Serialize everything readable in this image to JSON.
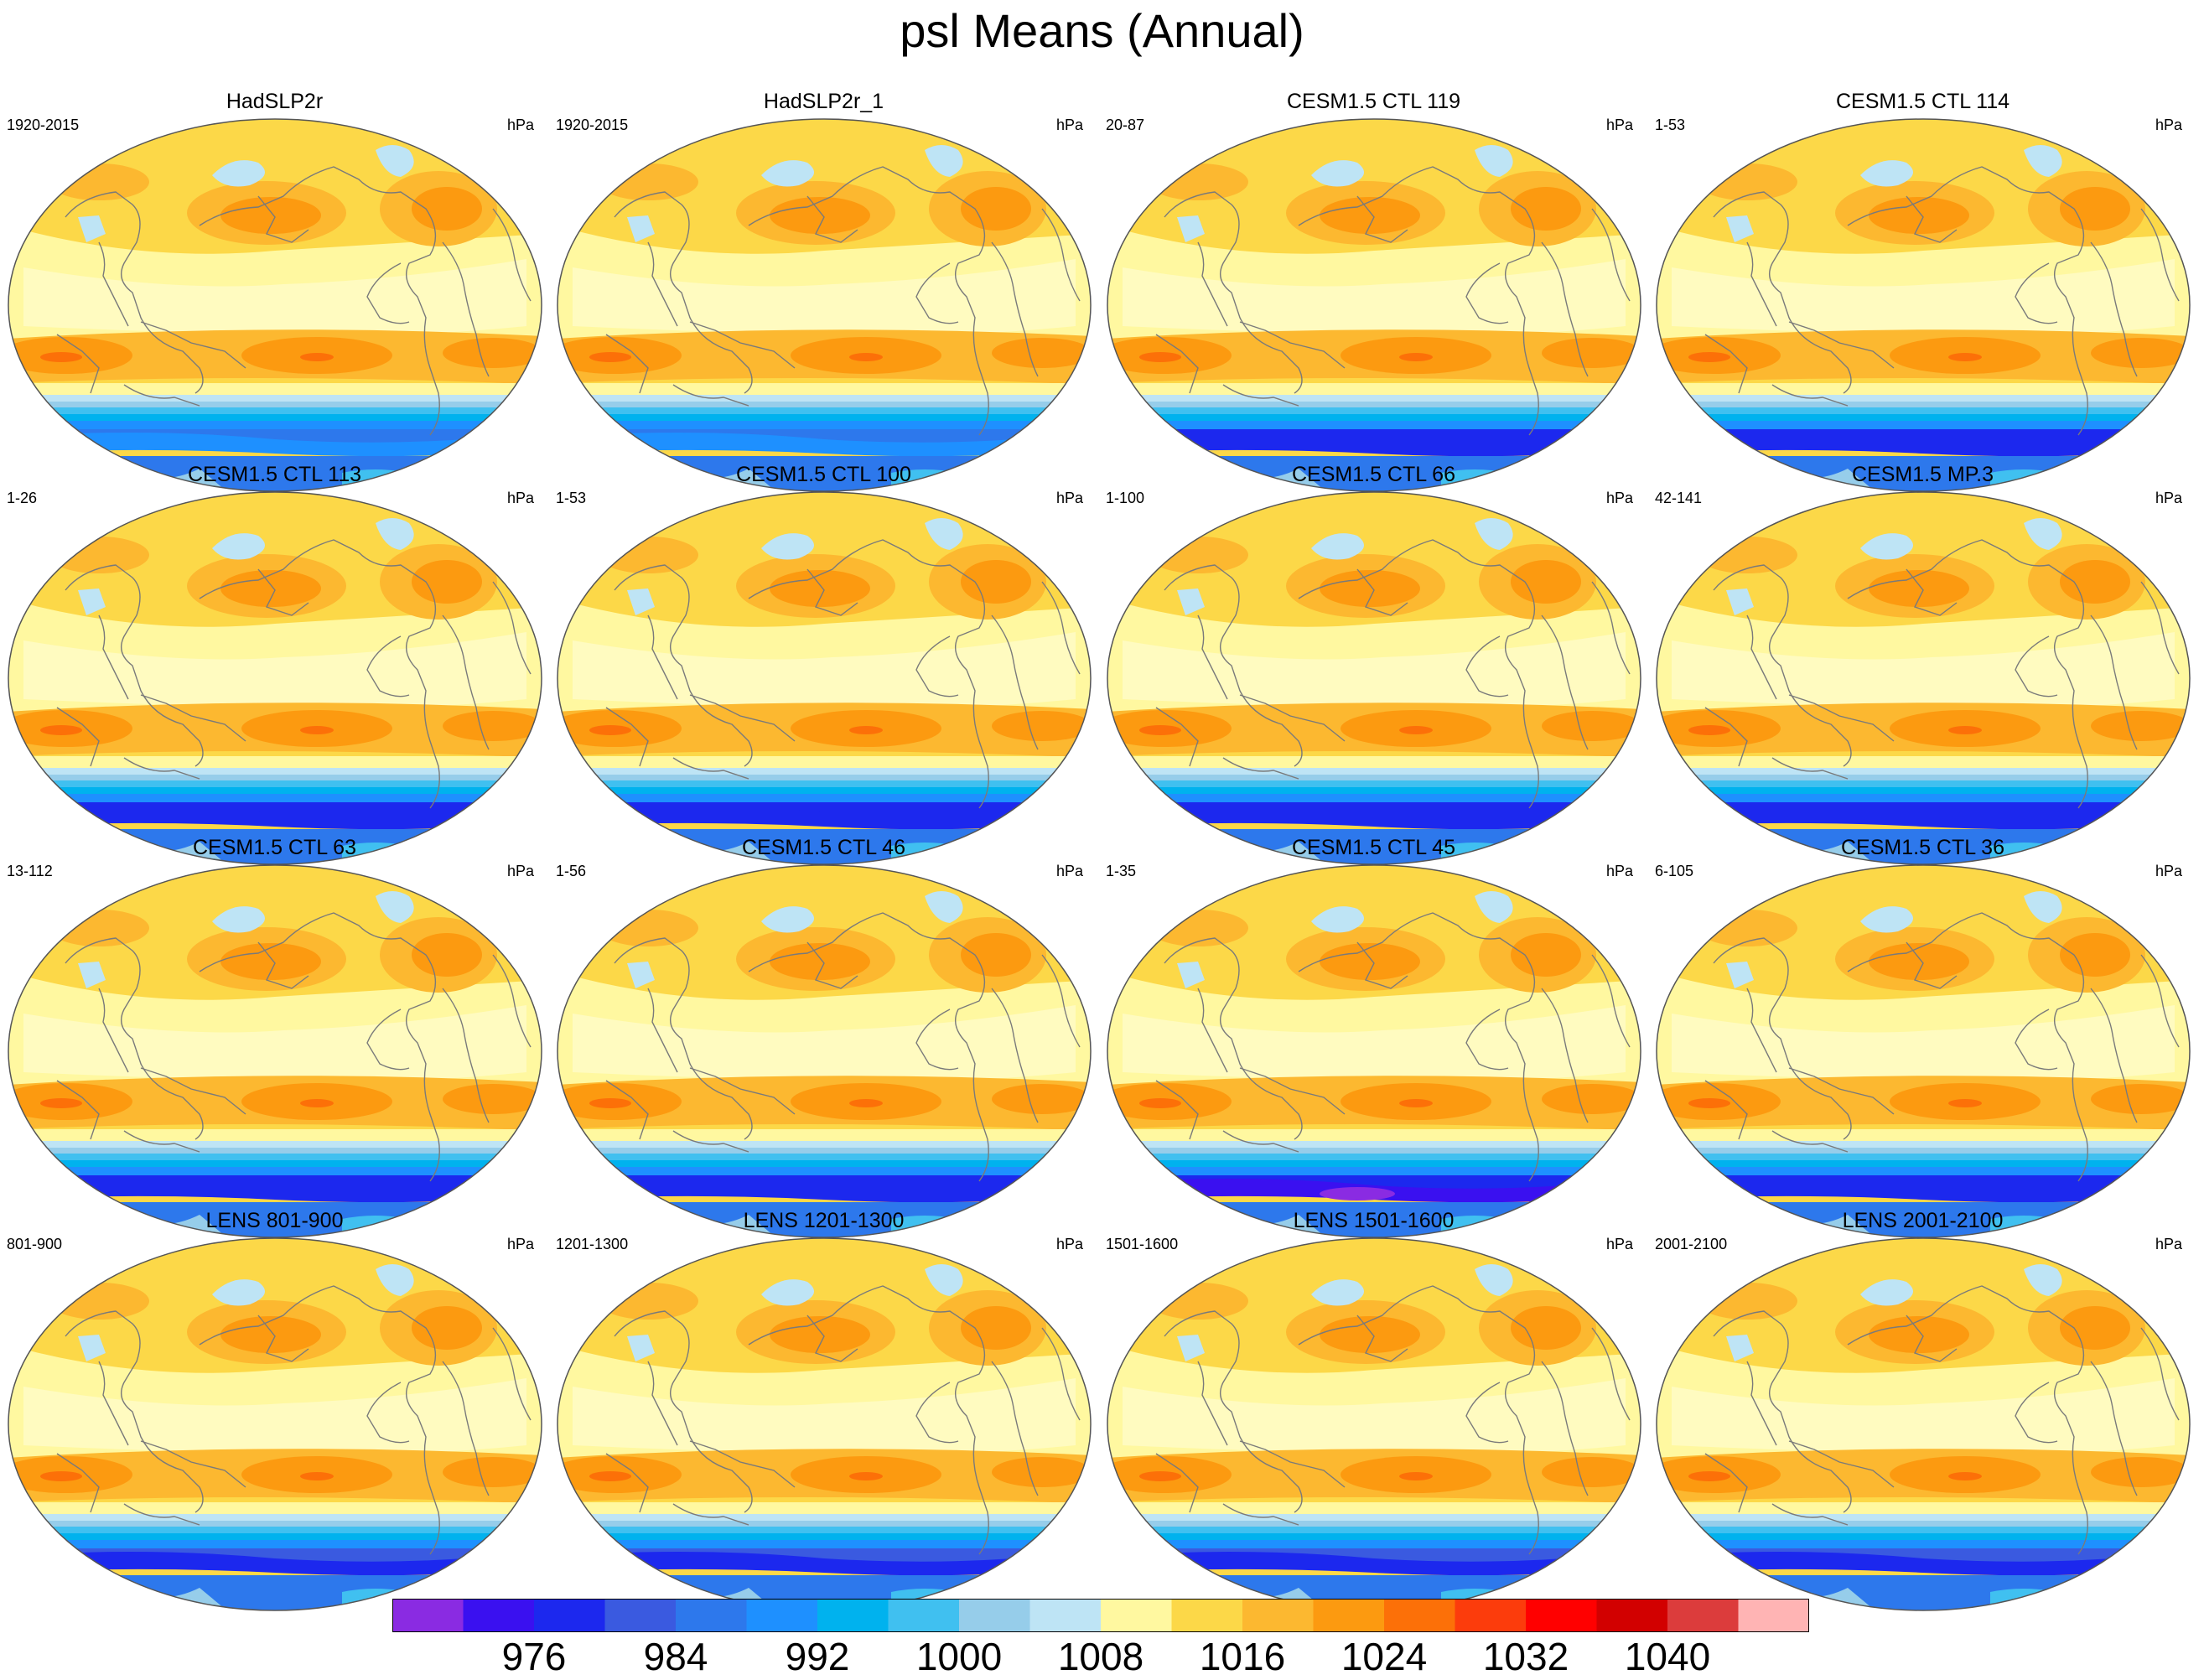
{
  "title": "psl Means (Annual)",
  "units": "hPa",
  "panels": [
    {
      "title": "HadSLP2r",
      "years": "1920-2015",
      "units": "hPa",
      "variant": "obs"
    },
    {
      "title": "HadSLP2r_1",
      "years": "1920-2015",
      "units": "hPa",
      "variant": "obs"
    },
    {
      "title": "CESM1.5 CTL 119",
      "years": "20-87",
      "units": "hPa",
      "variant": "deep"
    },
    {
      "title": "CESM1.5 CTL 114",
      "years": "1-53",
      "units": "hPa",
      "variant": "deep"
    },
    {
      "title": "CESM1.5 CTL 113",
      "years": "1-26",
      "units": "hPa",
      "variant": "deep"
    },
    {
      "title": "CESM1.5 CTL 100",
      "years": "1-53",
      "units": "hPa",
      "variant": "deep"
    },
    {
      "title": "CESM1.5 CTL 66",
      "years": "1-100",
      "units": "hPa",
      "variant": "deep"
    },
    {
      "title": "CESM1.5 MP.3",
      "years": "42-141",
      "units": "hPa",
      "variant": "deep"
    },
    {
      "title": "CESM1.5 CTL 63",
      "years": "13-112",
      "units": "hPa",
      "variant": "deep"
    },
    {
      "title": "CESM1.5 CTL 46",
      "years": "1-56",
      "units": "hPa",
      "variant": "deep"
    },
    {
      "title": "CESM1.5 CTL 45",
      "years": "1-35",
      "units": "hPa",
      "variant": "deepest"
    },
    {
      "title": "CESM1.5 CTL 36",
      "years": "6-105",
      "units": "hPa",
      "variant": "deep"
    },
    {
      "title": "LENS 801-900",
      "years": "801-900",
      "units": "hPa",
      "variant": "lens"
    },
    {
      "title": "LENS 1201-1300",
      "years": "1201-1300",
      "units": "hPa",
      "variant": "lens"
    },
    {
      "title": "LENS 1501-1600",
      "years": "1501-1600",
      "units": "hPa",
      "variant": "lens"
    },
    {
      "title": "LENS 2001-2100",
      "years": "2001-2100",
      "units": "hPa",
      "variant": "lens"
    }
  ],
  "colorbar": {
    "colors": [
      "#8a2be2",
      "#3a10f0",
      "#1c28ee",
      "#3a5ae0",
      "#2d78ec",
      "#1e90ff",
      "#00b2ee",
      "#40c0f0",
      "#96cdea",
      "#bee4f5",
      "#fff8a0",
      "#fcd848",
      "#fcb830",
      "#fc9a10",
      "#fc7008",
      "#fc3c0c",
      "#ff0000",
      "#d20000",
      "#dc3c3c",
      "#ffb4b4"
    ],
    "labels": [
      "976",
      "984",
      "992",
      "1000",
      "1008",
      "1016",
      "1024",
      "1032",
      "1040"
    ]
  }
}
